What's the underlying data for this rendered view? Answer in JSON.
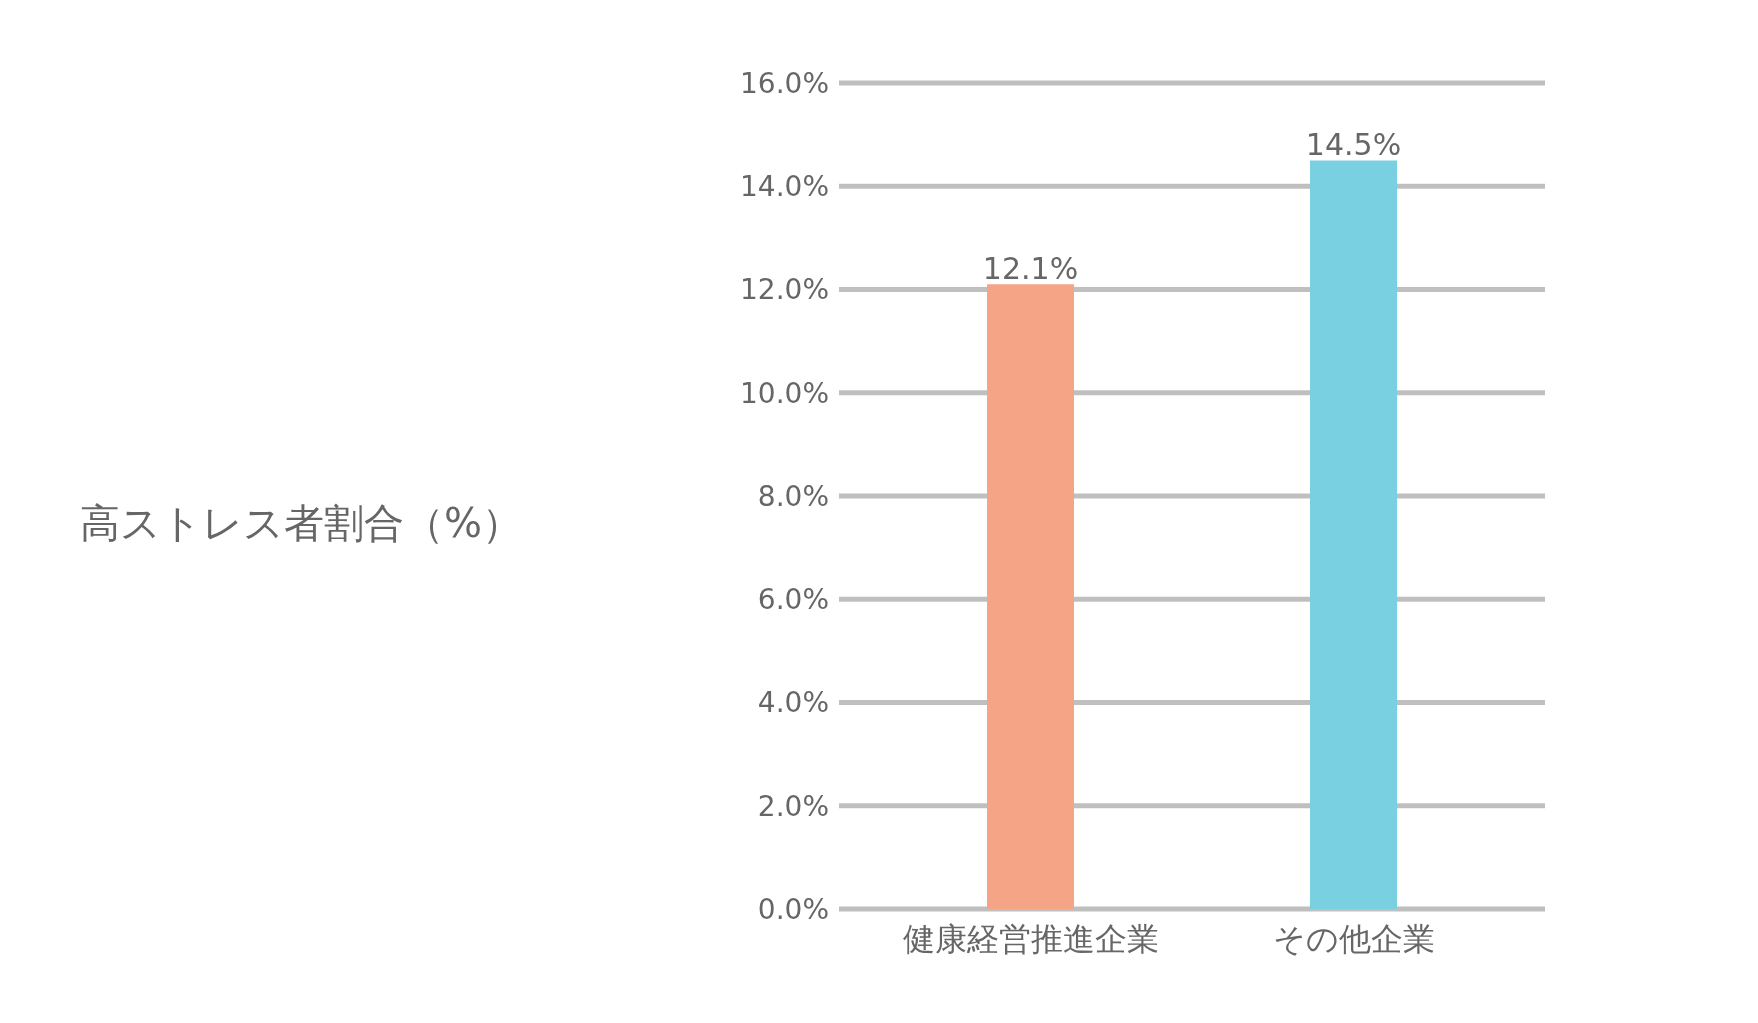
{
  "chart_data": {
    "type": "bar",
    "annotations": [
      "高ストレス者割合（%）"
    ],
    "categories": [
      "健康経営推進企業",
      "その他企業"
    ],
    "values": [
      12.1,
      14.5
    ],
    "colors": [
      "#f5a586",
      "#79d0e0"
    ],
    "value_labels": [
      "12.1%",
      "14.5%"
    ],
    "ylim": [
      0,
      16
    ],
    "yticks": [
      {
        "value": 0,
        "label": "0.0%"
      },
      {
        "value": 2,
        "label": "2.0%"
      },
      {
        "value": 4,
        "label": "4.0%"
      },
      {
        "value": 6,
        "label": "6.0%"
      },
      {
        "value": 8,
        "label": "8.0%"
      },
      {
        "value": 10,
        "label": "10.0%"
      },
      {
        "value": 12,
        "label": "12.0%"
      },
      {
        "value": 14,
        "label": "14.0%"
      },
      {
        "value": 16,
        "label": "16.0%"
      }
    ],
    "grid": "y",
    "legend": false
  }
}
